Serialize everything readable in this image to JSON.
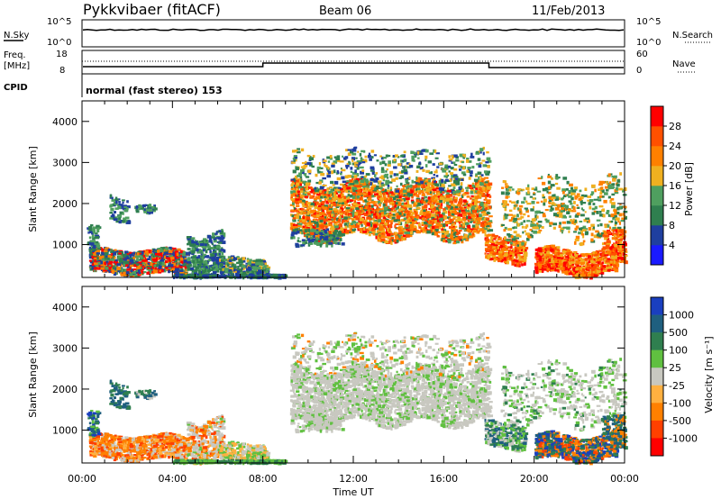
{
  "header": {
    "station": "Pykkvibaer (fitACF)",
    "beam": "Beam 06",
    "date": "11/Feb/2013"
  },
  "status_panels": {
    "nsky_label": "N.Sky",
    "nsearch_label": "N.Search",
    "noise_ticks_left": [
      "10^5",
      "10^0"
    ],
    "noise_ticks_right": [
      "10^5",
      "10^0"
    ],
    "freq_label_1": "Freq.",
    "freq_label_2": "[MHz]",
    "freq_ticks": [
      "18",
      "8"
    ],
    "nave_label": "Nave",
    "nave_ticks": [
      "60",
      "0"
    ],
    "cpid_label": "CPID",
    "cpid_text": "normal (fast stereo) 153"
  },
  "colors": {
    "power_scale": [
      "#1a1aff",
      "#1f3f9f",
      "#2f7f4f",
      "#4f9f5f",
      "#f0b020",
      "#ff8000",
      "#ff5000",
      "#ff0000"
    ],
    "velocity_scale": [
      "#ff0000",
      "#ff4000",
      "#ff8000",
      "#ffb040",
      "#c8c8c0",
      "#60c040",
      "#2f7f4f",
      "#1f5f7f",
      "#1a3fbf"
    ],
    "ground_scatter": "#c8c8c0"
  },
  "chart_data": [
    {
      "type": "heatmap",
      "panel": "power",
      "ylabel": "Slant Range [km]",
      "yticks": [
        "1000",
        "2000",
        "3000",
        "4000"
      ],
      "ylim": [
        200,
        4500
      ],
      "xlim": [
        0,
        24
      ],
      "xticks": [
        "00:00",
        "04:00",
        "08:00",
        "12:00",
        "16:00",
        "20:00",
        "00:00"
      ],
      "colorbar": {
        "label": "Power [dB]",
        "ticks": [
          "4",
          "8",
          "12",
          "16",
          "20",
          "24",
          "28"
        ]
      },
      "scatter_regions": [
        {
          "t0": 0.3,
          "t1": 4.5,
          "r0": 300,
          "r1": 1000,
          "level": "mixed-high"
        },
        {
          "t0": 4.5,
          "t1": 8.0,
          "r0": 300,
          "r1": 800,
          "level": "low"
        },
        {
          "t0": 9.2,
          "t1": 18.0,
          "r0": 1200,
          "r1": 2500,
          "level": "high"
        },
        {
          "t0": 17.8,
          "t1": 24.0,
          "r0": 300,
          "r1": 1200,
          "level": "high"
        }
      ]
    },
    {
      "type": "heatmap",
      "panel": "velocity",
      "xlabel": "Time UT",
      "ylabel": "Slant Range [km]",
      "yticks": [
        "1000",
        "2000",
        "3000",
        "4000"
      ],
      "ylim": [
        200,
        4500
      ],
      "xlim": [
        0,
        24
      ],
      "xticks": [
        "00:00",
        "04:00",
        "08:00",
        "12:00",
        "16:00",
        "20:00",
        "00:00"
      ],
      "colorbar": {
        "label": "Velocity [m s⁻¹]",
        "ticks": [
          "1000",
          "500",
          "100",
          "25",
          "-25",
          "-100",
          "-500",
          "-1000"
        ]
      }
    }
  ]
}
